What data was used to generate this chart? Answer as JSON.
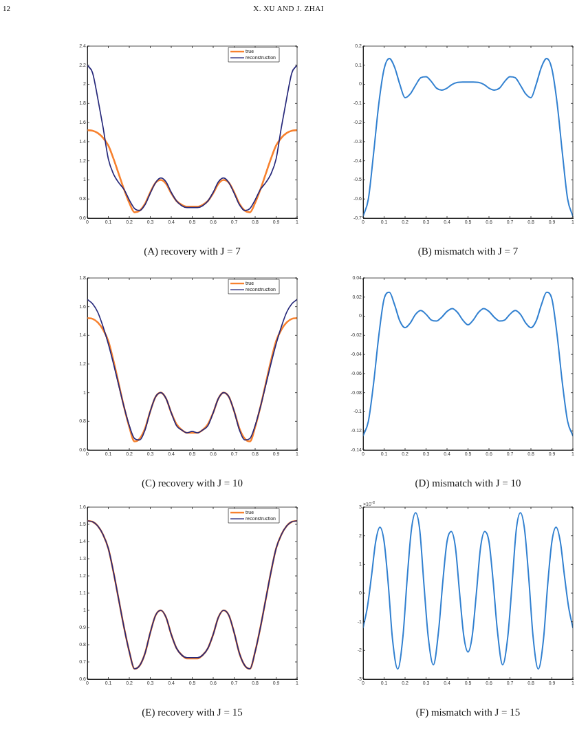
{
  "chart_data": [
    {
      "type": "other",
      "title": "X. XU AND J. ZHAI",
      "annotations": [
        "12"
      ]
    },
    {
      "type": "line",
      "title": "(A) recovery with J = 7",
      "x": [
        0,
        0.025,
        0.05,
        0.075,
        0.1,
        0.125,
        0.15,
        0.175,
        0.2,
        0.225,
        0.25,
        0.275,
        0.3,
        0.325,
        0.35,
        0.375,
        0.4,
        0.425,
        0.45,
        0.475,
        0.5,
        0.525,
        0.55,
        0.575,
        0.6,
        0.625,
        0.65,
        0.675,
        0.7,
        0.725,
        0.75,
        0.775,
        0.8,
        0.825,
        0.85,
        0.875,
        0.9,
        0.925,
        0.95,
        0.975,
        1
      ],
      "xlim": [
        0,
        1
      ],
      "xticks": [
        0,
        0.1,
        0.2,
        0.3,
        0.4,
        0.5,
        0.6,
        0.7,
        0.8,
        0.9,
        1
      ],
      "ylim": [
        0.6,
        2.4
      ],
      "yticks": [
        0.6,
        0.8,
        1,
        1.2,
        1.4,
        1.6,
        1.8,
        2,
        2.2,
        2.4
      ],
      "legend": "top right",
      "series": [
        {
          "name": "true",
          "color": "#f7812e",
          "values": [
            1.52,
            1.515,
            1.49,
            1.44,
            1.36,
            1.22,
            1.06,
            0.9,
            0.76,
            0.66,
            0.68,
            0.75,
            0.87,
            0.97,
            1.0,
            0.96,
            0.86,
            0.78,
            0.74,
            0.72,
            0.72,
            0.72,
            0.74,
            0.78,
            0.86,
            0.96,
            1.0,
            0.97,
            0.87,
            0.75,
            0.68,
            0.66,
            0.76,
            0.9,
            1.06,
            1.22,
            1.36,
            1.44,
            1.49,
            1.515,
            1.52
          ]
        },
        {
          "name": "reconstruction",
          "color": "#26287a",
          "values": [
            2.2,
            2.12,
            1.85,
            1.55,
            1.22,
            1.06,
            0.97,
            0.9,
            0.79,
            0.7,
            0.68,
            0.74,
            0.86,
            0.97,
            1.02,
            0.98,
            0.87,
            0.78,
            0.73,
            0.71,
            0.71,
            0.71,
            0.73,
            0.78,
            0.87,
            0.98,
            1.02,
            0.97,
            0.86,
            0.74,
            0.68,
            0.7,
            0.79,
            0.9,
            0.97,
            1.06,
            1.22,
            1.55,
            1.85,
            2.12,
            2.2
          ]
        }
      ]
    },
    {
      "type": "line",
      "title": "(B) mismatch with J = 7",
      "x": [
        0,
        0.025,
        0.05,
        0.075,
        0.1,
        0.125,
        0.15,
        0.175,
        0.2,
        0.225,
        0.25,
        0.275,
        0.3,
        0.325,
        0.35,
        0.375,
        0.4,
        0.425,
        0.45,
        0.475,
        0.5,
        0.525,
        0.55,
        0.575,
        0.6,
        0.625,
        0.65,
        0.675,
        0.7,
        0.725,
        0.75,
        0.775,
        0.8,
        0.825,
        0.85,
        0.875,
        0.9,
        0.925,
        0.95,
        0.975,
        1
      ],
      "xlim": [
        0,
        1
      ],
      "xticks": [
        0,
        0.1,
        0.2,
        0.3,
        0.4,
        0.5,
        0.6,
        0.7,
        0.8,
        0.9,
        1
      ],
      "ylim": [
        -0.7,
        0.2
      ],
      "yticks": [
        -0.7,
        -0.6,
        -0.5,
        -0.4,
        -0.3,
        -0.2,
        -0.1,
        0,
        0.1,
        0.2
      ],
      "series": [
        {
          "color": "#3180d0",
          "values": [
            -0.69,
            -0.6,
            -0.36,
            -0.1,
            0.08,
            0.135,
            0.09,
            0.0,
            -0.07,
            -0.05,
            -0.005,
            0.035,
            0.04,
            0.015,
            -0.02,
            -0.03,
            -0.02,
            0.0,
            0.01,
            0.012,
            0.012,
            0.012,
            0.01,
            0.0,
            -0.02,
            -0.03,
            -0.02,
            0.015,
            0.04,
            0.035,
            -0.005,
            -0.05,
            -0.07,
            0.0,
            0.09,
            0.135,
            0.08,
            -0.1,
            -0.36,
            -0.6,
            -0.69
          ]
        }
      ]
    },
    {
      "type": "line",
      "title": "(C) recovery with J = 10",
      "x": [
        0,
        0.025,
        0.05,
        0.075,
        0.1,
        0.125,
        0.15,
        0.175,
        0.2,
        0.225,
        0.25,
        0.275,
        0.3,
        0.325,
        0.35,
        0.375,
        0.4,
        0.425,
        0.45,
        0.475,
        0.5,
        0.525,
        0.55,
        0.575,
        0.6,
        0.625,
        0.65,
        0.675,
        0.7,
        0.725,
        0.75,
        0.775,
        0.8,
        0.825,
        0.85,
        0.875,
        0.9,
        0.925,
        0.95,
        0.975,
        1
      ],
      "xlim": [
        0,
        1
      ],
      "xticks": [
        0,
        0.1,
        0.2,
        0.3,
        0.4,
        0.5,
        0.6,
        0.7,
        0.8,
        0.9,
        1
      ],
      "ylim": [
        0.6,
        1.8
      ],
      "yticks": [
        0.6,
        0.8,
        1,
        1.2,
        1.4,
        1.6,
        1.8
      ],
      "legend": "top right",
      "series": [
        {
          "name": "true",
          "color": "#f7812e",
          "values": [
            1.52,
            1.515,
            1.49,
            1.44,
            1.36,
            1.22,
            1.06,
            0.9,
            0.76,
            0.66,
            0.68,
            0.75,
            0.87,
            0.97,
            1.0,
            0.96,
            0.86,
            0.78,
            0.74,
            0.72,
            0.72,
            0.72,
            0.74,
            0.78,
            0.86,
            0.96,
            1.0,
            0.97,
            0.87,
            0.75,
            0.68,
            0.66,
            0.76,
            0.9,
            1.06,
            1.22,
            1.36,
            1.44,
            1.49,
            1.515,
            1.52
          ]
        },
        {
          "name": "reconstruction",
          "color": "#26287a",
          "values": [
            1.65,
            1.62,
            1.56,
            1.46,
            1.34,
            1.2,
            1.05,
            0.9,
            0.77,
            0.68,
            0.67,
            0.74,
            0.87,
            0.97,
            1.0,
            0.96,
            0.86,
            0.77,
            0.74,
            0.72,
            0.73,
            0.72,
            0.74,
            0.77,
            0.86,
            0.96,
            1.0,
            0.97,
            0.87,
            0.74,
            0.67,
            0.68,
            0.77,
            0.9,
            1.05,
            1.2,
            1.34,
            1.46,
            1.56,
            1.62,
            1.65
          ]
        }
      ]
    },
    {
      "type": "line",
      "title": "(D) mismatch with J = 10",
      "x": [
        0,
        0.025,
        0.05,
        0.075,
        0.1,
        0.125,
        0.15,
        0.175,
        0.2,
        0.225,
        0.25,
        0.275,
        0.3,
        0.325,
        0.35,
        0.375,
        0.4,
        0.425,
        0.45,
        0.475,
        0.5,
        0.525,
        0.55,
        0.575,
        0.6,
        0.625,
        0.65,
        0.675,
        0.7,
        0.725,
        0.75,
        0.775,
        0.8,
        0.825,
        0.85,
        0.875,
        0.9,
        0.925,
        0.95,
        0.975,
        1
      ],
      "xlim": [
        0,
        1
      ],
      "xticks": [
        0,
        0.1,
        0.2,
        0.3,
        0.4,
        0.5,
        0.6,
        0.7,
        0.8,
        0.9,
        1
      ],
      "ylim": [
        -0.14,
        0.04
      ],
      "yticks": [
        -0.14,
        -0.12,
        -0.1,
        -0.08,
        -0.06,
        -0.04,
        -0.02,
        0,
        0.02,
        0.04
      ],
      "series": [
        {
          "color": "#3180d0",
          "values": [
            -0.125,
            -0.11,
            -0.07,
            -0.02,
            0.018,
            0.025,
            0.012,
            -0.005,
            -0.012,
            -0.007,
            0.002,
            0.006,
            0.002,
            -0.004,
            -0.005,
            -0.001,
            0.005,
            0.008,
            0.004,
            -0.004,
            -0.009,
            -0.004,
            0.004,
            0.008,
            0.005,
            -0.001,
            -0.005,
            -0.004,
            0.002,
            0.006,
            0.002,
            -0.007,
            -0.012,
            -0.005,
            0.012,
            0.025,
            0.018,
            -0.02,
            -0.07,
            -0.11,
            -0.125
          ]
        }
      ]
    },
    {
      "type": "line",
      "title": "(E) recovery with J = 15",
      "x": [
        0,
        0.025,
        0.05,
        0.075,
        0.1,
        0.125,
        0.15,
        0.175,
        0.2,
        0.225,
        0.25,
        0.275,
        0.3,
        0.325,
        0.35,
        0.375,
        0.4,
        0.425,
        0.45,
        0.475,
        0.5,
        0.525,
        0.55,
        0.575,
        0.6,
        0.625,
        0.65,
        0.675,
        0.7,
        0.725,
        0.75,
        0.775,
        0.8,
        0.825,
        0.85,
        0.875,
        0.9,
        0.925,
        0.95,
        0.975,
        1
      ],
      "xlim": [
        0,
        1
      ],
      "xticks": [
        0,
        0.1,
        0.2,
        0.3,
        0.4,
        0.5,
        0.6,
        0.7,
        0.8,
        0.9,
        1
      ],
      "ylim": [
        0.6,
        1.6
      ],
      "yticks": [
        0.6,
        0.7,
        0.8,
        0.9,
        1,
        1.1,
        1.2,
        1.3,
        1.4,
        1.5,
        1.6
      ],
      "legend": "top right",
      "series": [
        {
          "name": "true",
          "color": "#f7812e",
          "values": [
            1.52,
            1.515,
            1.49,
            1.44,
            1.36,
            1.22,
            1.06,
            0.9,
            0.76,
            0.66,
            0.68,
            0.75,
            0.87,
            0.97,
            1.0,
            0.96,
            0.86,
            0.78,
            0.74,
            0.72,
            0.72,
            0.72,
            0.74,
            0.78,
            0.86,
            0.96,
            1.0,
            0.97,
            0.87,
            0.75,
            0.68,
            0.66,
            0.76,
            0.9,
            1.06,
            1.22,
            1.36,
            1.44,
            1.49,
            1.515,
            1.52
          ]
        },
        {
          "name": "reconstruction",
          "color": "#26287a",
          "values": [
            1.52,
            1.515,
            1.49,
            1.44,
            1.36,
            1.22,
            1.06,
            0.9,
            0.76,
            0.66,
            0.68,
            0.75,
            0.87,
            0.97,
            1.0,
            0.96,
            0.86,
            0.78,
            0.74,
            0.725,
            0.725,
            0.725,
            0.74,
            0.78,
            0.86,
            0.96,
            1.0,
            0.97,
            0.87,
            0.75,
            0.68,
            0.66,
            0.76,
            0.9,
            1.06,
            1.22,
            1.36,
            1.44,
            1.49,
            1.515,
            1.52
          ]
        }
      ]
    },
    {
      "type": "line",
      "title": "(F) mismatch with J = 15",
      "annotations": [
        "×10$^{-3}$"
      ],
      "x": [
        0,
        0.02,
        0.04,
        0.06,
        0.08,
        0.1,
        0.12,
        0.14,
        0.165,
        0.19,
        0.21,
        0.23,
        0.25,
        0.27,
        0.29,
        0.31,
        0.335,
        0.36,
        0.38,
        0.4,
        0.42,
        0.44,
        0.46,
        0.48,
        0.5,
        0.52,
        0.54,
        0.56,
        0.58,
        0.6,
        0.62,
        0.64,
        0.665,
        0.69,
        0.71,
        0.73,
        0.75,
        0.77,
        0.79,
        0.81,
        0.835,
        0.86,
        0.88,
        0.9,
        0.92,
        0.94,
        0.96,
        0.98,
        1
      ],
      "xlim": [
        0,
        1
      ],
      "xticks": [
        0,
        0.1,
        0.2,
        0.3,
        0.4,
        0.5,
        0.6,
        0.7,
        0.8,
        0.9,
        1
      ],
      "ylim": [
        -3,
        3
      ],
      "yticks": [
        -3,
        -2,
        -1,
        0,
        1,
        2,
        3
      ],
      "series": [
        {
          "color": "#3180d0",
          "values": [
            -1.2,
            -0.5,
            0.6,
            1.8,
            2.3,
            1.8,
            0.3,
            -1.6,
            -2.65,
            -1.5,
            0.5,
            2.2,
            2.8,
            2.2,
            0.3,
            -1.5,
            -2.5,
            -1.3,
            0.4,
            1.8,
            2.15,
            1.6,
            0.0,
            -1.5,
            -2.05,
            -1.5,
            0.0,
            1.6,
            2.15,
            1.8,
            0.4,
            -1.3,
            -2.5,
            -1.5,
            0.3,
            2.2,
            2.8,
            2.2,
            0.5,
            -1.5,
            -2.65,
            -1.6,
            0.3,
            1.8,
            2.3,
            1.8,
            0.6,
            -0.5,
            -1.2
          ]
        }
      ]
    }
  ]
}
